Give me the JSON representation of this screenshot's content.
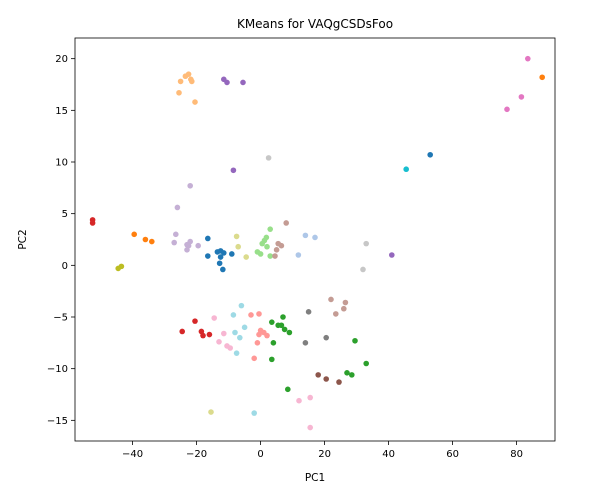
{
  "chart_data": {
    "type": "scatter",
    "title": "KMeans for VAQgCSDsFoo",
    "xlabel": "PC1",
    "ylabel": "PC2",
    "xlim": [
      -58,
      92
    ],
    "ylim": [
      -17,
      22
    ],
    "xticks": [
      -40,
      -20,
      0,
      20,
      40,
      60,
      80
    ],
    "yticks": [
      -15,
      -10,
      -5,
      0,
      5,
      10,
      15,
      20
    ],
    "grid": false,
    "legend": false,
    "series": [
      {
        "color": "#1f77b4",
        "points": [
          [
            -16.5,
            2.6
          ],
          [
            -13.5,
            1.3
          ],
          [
            -12.5,
            1.4
          ],
          [
            -11.5,
            1.2
          ],
          [
            -12.5,
            0.8
          ],
          [
            -12.8,
            0.2
          ],
          [
            -16.5,
            0.9
          ],
          [
            -11.8,
            -0.4
          ],
          [
            -9,
            1.1
          ],
          [
            53,
            10.7
          ]
        ]
      },
      {
        "color": "#aec7e8",
        "points": [
          [
            14,
            2.9
          ],
          [
            17,
            2.7
          ],
          [
            11.8,
            1.0
          ]
        ]
      },
      {
        "color": "#ff7f0e",
        "points": [
          [
            -39.5,
            3.0
          ],
          [
            -36,
            2.5
          ],
          [
            -34,
            2.3
          ],
          [
            88,
            18.2
          ]
        ]
      },
      {
        "color": "#ffbb78",
        "points": [
          [
            -23.5,
            18.3
          ],
          [
            -22.5,
            18.5
          ],
          [
            -21.8,
            18.0
          ],
          [
            -25,
            17.8
          ],
          [
            -21.5,
            17.8
          ],
          [
            -25.5,
            16.7
          ],
          [
            -20.5,
            15.8
          ]
        ]
      },
      {
        "color": "#2ca02c",
        "points": [
          [
            3.5,
            -5.5
          ],
          [
            7,
            -5.0
          ],
          [
            5.5,
            -5.8
          ],
          [
            6.5,
            -5.8
          ],
          [
            7.5,
            -6.2
          ],
          [
            9,
            -6.5
          ],
          [
            4,
            -7.5
          ],
          [
            29.5,
            -7.3
          ],
          [
            3.5,
            -9.1
          ],
          [
            33,
            -9.5
          ],
          [
            27,
            -10.4
          ],
          [
            28.5,
            -10.6
          ],
          [
            8.5,
            -12.0
          ]
        ]
      },
      {
        "color": "#98df8a",
        "points": [
          [
            3,
            3.5
          ],
          [
            1.8,
            2.7
          ],
          [
            1.2,
            2.4
          ],
          [
            0.5,
            2.1
          ],
          [
            2,
            1.8
          ],
          [
            -1.0,
            1.3
          ],
          [
            0.0,
            1.1
          ],
          [
            3,
            0.9
          ]
        ]
      },
      {
        "color": "#d62728",
        "points": [
          [
            -52.5,
            4.4
          ],
          [
            -52.5,
            4.1
          ],
          [
            -20.5,
            -5.4
          ],
          [
            -24.5,
            -6.4
          ],
          [
            -18.5,
            -6.4
          ],
          [
            -18,
            -6.8
          ],
          [
            -16,
            -6.7
          ]
        ]
      },
      {
        "color": "#ff9896",
        "points": [
          [
            -3,
            -4.8
          ],
          [
            -0.5,
            -4.7
          ],
          [
            0,
            -6.3
          ],
          [
            -0.5,
            -6.7
          ],
          [
            1,
            -6.5
          ],
          [
            2,
            -6.8
          ],
          [
            -1,
            -7.5
          ],
          [
            -2,
            -9.0
          ]
        ]
      },
      {
        "color": "#9467bd",
        "points": [
          [
            -11.5,
            18.0
          ],
          [
            -10.5,
            17.7
          ],
          [
            -5.5,
            17.7
          ],
          [
            -8.5,
            9.2
          ],
          [
            41,
            1.0
          ]
        ]
      },
      {
        "color": "#c5b0d5",
        "points": [
          [
            -22,
            7.7
          ],
          [
            -26,
            5.6
          ],
          [
            -26.5,
            3.0
          ],
          [
            -27,
            2.2
          ],
          [
            -23,
            2.0
          ],
          [
            -22.5,
            1.9
          ],
          [
            -19.5,
            1.9
          ],
          [
            -23,
            1.5
          ],
          [
            -22,
            2.3
          ]
        ]
      },
      {
        "color": "#8c564b",
        "points": [
          [
            18,
            -10.6
          ],
          [
            20.5,
            -11.0
          ],
          [
            24.5,
            -11.3
          ]
        ]
      },
      {
        "color": "#c49c94",
        "points": [
          [
            8,
            4.1
          ],
          [
            5.5,
            2.1
          ],
          [
            6.5,
            1.9
          ],
          [
            5,
            1.5
          ],
          [
            4.5,
            0.9
          ],
          [
            22,
            -3.3
          ],
          [
            26.5,
            -3.6
          ],
          [
            26,
            -4.2
          ],
          [
            23.5,
            -4.7
          ]
        ]
      },
      {
        "color": "#e377c2",
        "points": [
          [
            83.5,
            20.0
          ],
          [
            81.5,
            16.3
          ],
          [
            77,
            15.1
          ]
        ]
      },
      {
        "color": "#f7b6d2",
        "points": [
          [
            -14.5,
            -5.1
          ],
          [
            -11.5,
            -6.6
          ],
          [
            -13,
            -7.4
          ],
          [
            -10.5,
            -7.8
          ],
          [
            -9.5,
            -8.0
          ],
          [
            12,
            -13.1
          ],
          [
            15.5,
            -12.8
          ],
          [
            15.5,
            -15.7
          ]
        ]
      },
      {
        "color": "#7f7f7f",
        "points": [
          [
            15,
            -4.5
          ],
          [
            20.5,
            -7.0
          ],
          [
            14,
            -7.5
          ]
        ]
      },
      {
        "color": "#c7c7c7",
        "points": [
          [
            2.5,
            10.4
          ],
          [
            33,
            2.1
          ],
          [
            32,
            -0.4
          ]
        ]
      },
      {
        "color": "#bcbd22",
        "points": [
          [
            -44.5,
            -0.3
          ],
          [
            -43.5,
            -0.1
          ]
        ]
      },
      {
        "color": "#dbdb8d",
        "points": [
          [
            -7.5,
            2.8
          ],
          [
            -7,
            1.8
          ],
          [
            -4.5,
            0.8
          ],
          [
            -15.5,
            -14.2
          ]
        ]
      },
      {
        "color": "#17becf",
        "points": [
          [
            45.5,
            9.3
          ]
        ]
      },
      {
        "color": "#9edae5",
        "points": [
          [
            -6,
            -3.9
          ],
          [
            -8.5,
            -4.8
          ],
          [
            -5,
            -6.0
          ],
          [
            -8,
            -6.5
          ],
          [
            -6.5,
            -7.0
          ],
          [
            -7.5,
            -8.5
          ],
          [
            -2,
            -14.3
          ]
        ]
      }
    ]
  }
}
